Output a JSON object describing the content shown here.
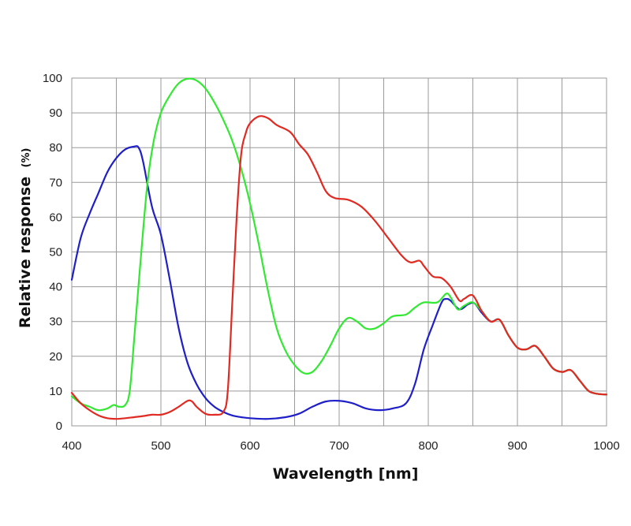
{
  "chart_data": {
    "type": "line",
    "xlabel": "Wavelength [nm]",
    "ylabel": "Relative response",
    "ylabel_unit": "(%)",
    "xlim": [
      400,
      1000
    ],
    "ylim": [
      0,
      100
    ],
    "xticks": [
      400,
      500,
      600,
      700,
      800,
      900,
      1000
    ],
    "yticks": [
      0,
      10,
      20,
      30,
      40,
      50,
      60,
      70,
      80,
      90,
      100
    ],
    "grid": true,
    "legend": "none",
    "series": [
      {
        "color": "#1f1fc8",
        "points": [
          [
            400,
            42
          ],
          [
            410,
            54
          ],
          [
            420,
            61
          ],
          [
            430,
            67
          ],
          [
            440,
            73
          ],
          [
            450,
            77
          ],
          [
            460,
            79.5
          ],
          [
            470,
            80.3
          ],
          [
            475,
            80
          ],
          [
            480,
            76
          ],
          [
            490,
            63
          ],
          [
            500,
            55
          ],
          [
            510,
            42
          ],
          [
            520,
            28
          ],
          [
            530,
            18
          ],
          [
            540,
            12
          ],
          [
            550,
            8
          ],
          [
            560,
            5.5
          ],
          [
            570,
            4
          ],
          [
            580,
            3
          ],
          [
            590,
            2.5
          ],
          [
            600,
            2.2
          ],
          [
            620,
            2
          ],
          [
            640,
            2.5
          ],
          [
            655,
            3.5
          ],
          [
            670,
            5.5
          ],
          [
            685,
            7
          ],
          [
            700,
            7.2
          ],
          [
            715,
            6.5
          ],
          [
            730,
            5
          ],
          [
            745,
            4.5
          ],
          [
            760,
            5
          ],
          [
            775,
            6.5
          ],
          [
            785,
            12
          ],
          [
            795,
            22
          ],
          [
            805,
            29
          ],
          [
            815,
            35.5
          ],
          [
            820,
            36.5
          ],
          [
            825,
            36
          ],
          [
            835,
            33.5
          ],
          [
            845,
            35
          ],
          [
            852,
            35.2
          ],
          [
            860,
            32.5
          ],
          [
            870,
            30
          ],
          [
            880,
            30.5
          ],
          [
            890,
            26
          ],
          [
            900,
            22.5
          ],
          [
            910,
            22
          ],
          [
            920,
            23
          ],
          [
            930,
            20
          ],
          [
            940,
            16.5
          ],
          [
            950,
            15.5
          ],
          [
            960,
            16
          ],
          [
            970,
            13
          ],
          [
            980,
            10
          ],
          [
            990,
            9.2
          ],
          [
            1000,
            9
          ]
        ]
      },
      {
        "color": "#33e833",
        "points": [
          [
            400,
            8.5
          ],
          [
            410,
            6.5
          ],
          [
            420,
            5.5
          ],
          [
            430,
            4.5
          ],
          [
            440,
            5
          ],
          [
            447,
            6
          ],
          [
            453,
            5.5
          ],
          [
            460,
            6
          ],
          [
            465,
            10
          ],
          [
            470,
            25
          ],
          [
            478,
            50
          ],
          [
            485,
            70
          ],
          [
            492,
            82
          ],
          [
            500,
            90
          ],
          [
            510,
            95
          ],
          [
            520,
            98.5
          ],
          [
            530,
            99.8
          ],
          [
            540,
            99.3
          ],
          [
            550,
            97
          ],
          [
            560,
            93
          ],
          [
            570,
            88
          ],
          [
            580,
            82
          ],
          [
            590,
            74
          ],
          [
            600,
            64
          ],
          [
            610,
            52
          ],
          [
            620,
            39
          ],
          [
            630,
            28
          ],
          [
            640,
            21.5
          ],
          [
            650,
            17.5
          ],
          [
            660,
            15.2
          ],
          [
            670,
            15.5
          ],
          [
            680,
            18.5
          ],
          [
            690,
            23
          ],
          [
            700,
            28
          ],
          [
            710,
            31
          ],
          [
            720,
            30
          ],
          [
            730,
            28
          ],
          [
            740,
            28
          ],
          [
            750,
            29.5
          ],
          [
            760,
            31.5
          ],
          [
            775,
            32
          ],
          [
            785,
            34
          ],
          [
            795,
            35.5
          ],
          [
            810,
            35.5
          ],
          [
            820,
            38
          ],
          [
            825,
            37
          ],
          [
            833,
            33.5
          ],
          [
            840,
            34.5
          ],
          [
            850,
            35.5
          ],
          [
            860,
            33
          ],
          [
            870,
            30
          ],
          [
            880,
            30.5
          ],
          [
            890,
            26
          ],
          [
            900,
            22.5
          ],
          [
            910,
            22
          ],
          [
            920,
            23
          ],
          [
            930,
            20
          ],
          [
            940,
            16.5
          ],
          [
            950,
            15.5
          ],
          [
            960,
            16
          ],
          [
            970,
            13
          ],
          [
            980,
            10
          ],
          [
            990,
            9.2
          ],
          [
            1000,
            9
          ]
        ]
      },
      {
        "color": "#e02a22",
        "points": [
          [
            400,
            9.5
          ],
          [
            410,
            6.5
          ],
          [
            420,
            4.5
          ],
          [
            430,
            3
          ],
          [
            440,
            2.2
          ],
          [
            450,
            2
          ],
          [
            460,
            2.2
          ],
          [
            470,
            2.5
          ],
          [
            480,
            2.8
          ],
          [
            490,
            3.2
          ],
          [
            500,
            3.2
          ],
          [
            510,
            4
          ],
          [
            520,
            5.5
          ],
          [
            530,
            7.2
          ],
          [
            535,
            7
          ],
          [
            540,
            5.5
          ],
          [
            550,
            3.5
          ],
          [
            560,
            3.2
          ],
          [
            570,
            4
          ],
          [
            575,
            10
          ],
          [
            580,
            35
          ],
          [
            585,
            60
          ],
          [
            590,
            78
          ],
          [
            595,
            84
          ],
          [
            600,
            87
          ],
          [
            610,
            89
          ],
          [
            620,
            88.5
          ],
          [
            630,
            86.5
          ],
          [
            645,
            84.5
          ],
          [
            655,
            81
          ],
          [
            665,
            78
          ],
          [
            675,
            73
          ],
          [
            685,
            67.5
          ],
          [
            695,
            65.5
          ],
          [
            710,
            65
          ],
          [
            725,
            63
          ],
          [
            740,
            59
          ],
          [
            755,
            54
          ],
          [
            770,
            49
          ],
          [
            780,
            47
          ],
          [
            790,
            47.5
          ],
          [
            795,
            46
          ],
          [
            805,
            43
          ],
          [
            815,
            42.5
          ],
          [
            825,
            40
          ],
          [
            835,
            36
          ],
          [
            840,
            36.5
          ],
          [
            850,
            37.5
          ],
          [
            860,
            33
          ],
          [
            870,
            30
          ],
          [
            880,
            30.5
          ],
          [
            890,
            26
          ],
          [
            900,
            22.5
          ],
          [
            910,
            22
          ],
          [
            920,
            23
          ],
          [
            930,
            20
          ],
          [
            940,
            16.5
          ],
          [
            950,
            15.5
          ],
          [
            960,
            16
          ],
          [
            970,
            13
          ],
          [
            980,
            10
          ],
          [
            990,
            9.2
          ],
          [
            1000,
            9
          ]
        ]
      }
    ]
  }
}
